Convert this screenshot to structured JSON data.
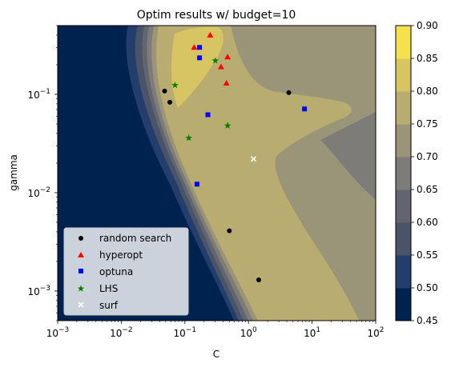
{
  "chart_data": {
    "type": "scatter",
    "title": "Optim results w/ budget=10",
    "xlabel": "C",
    "ylabel": "gamma",
    "xscale": "log",
    "yscale": "log",
    "xlim": [
      0.001,
      100
    ],
    "ylim": [
      0.0005,
      0.5
    ],
    "grid": false,
    "legend_position": "lower-left",
    "x_ticks": [
      {
        "value": 0.001,
        "base": "10",
        "exp": "−3"
      },
      {
        "value": 0.01,
        "base": "10",
        "exp": "−2"
      },
      {
        "value": 0.1,
        "base": "10",
        "exp": "−1"
      },
      {
        "value": 1,
        "base": "10",
        "exp": "0"
      },
      {
        "value": 10,
        "base": "10",
        "exp": "1"
      },
      {
        "value": 100,
        "base": "10",
        "exp": "2"
      }
    ],
    "y_ticks": [
      {
        "value": 0.001,
        "base": "10",
        "exp": "−3"
      },
      {
        "value": 0.01,
        "base": "10",
        "exp": "−2"
      },
      {
        "value": 0.1,
        "base": "10",
        "exp": "−1"
      }
    ],
    "colorbar": {
      "levels": [
        0.45,
        0.5,
        0.55,
        0.6,
        0.65,
        0.7,
        0.75,
        0.8,
        0.85,
        0.9
      ],
      "tick_labels": [
        "0.45",
        "0.50",
        "0.55",
        "0.60",
        "0.65",
        "0.70",
        "0.75",
        "0.80",
        "0.85",
        "0.90"
      ],
      "colors": [
        "#00224e",
        "#233e6c",
        "#4a5468",
        "#62656f",
        "#7d7c78",
        "#9a9578",
        "#b9ac70",
        "#d7c463",
        "#f6e14c"
      ]
    },
    "series": [
      {
        "name": "random search",
        "marker": "circle",
        "color": "#000000",
        "points": [
          [
            0.048,
            0.108
          ],
          [
            0.058,
            0.083
          ],
          [
            0.5,
            0.0041
          ],
          [
            1.45,
            0.0013
          ],
          [
            4.3,
            0.104
          ]
        ]
      },
      {
        "name": "hyperopt",
        "marker": "triangle",
        "color": "#ff0000",
        "points": [
          [
            0.14,
            0.3
          ],
          [
            0.25,
            0.4
          ],
          [
            0.37,
            0.19
          ],
          [
            0.47,
            0.24
          ],
          [
            0.45,
            0.13
          ]
        ]
      },
      {
        "name": "optuna",
        "marker": "square",
        "color": "#0000ff",
        "points": [
          [
            0.17,
            0.3
          ],
          [
            0.17,
            0.235
          ],
          [
            0.23,
            0.062
          ],
          [
            0.155,
            0.0122
          ],
          [
            7.6,
            0.071
          ]
        ]
      },
      {
        "name": "LHS",
        "marker": "star",
        "color": "#008000",
        "points": [
          [
            0.07,
            0.124
          ],
          [
            0.115,
            0.036
          ],
          [
            0.3,
            0.22
          ],
          [
            0.47,
            0.048
          ]
        ]
      },
      {
        "name": "surf",
        "marker": "x",
        "color": "#ffffff",
        "points": [
          [
            1.2,
            0.022
          ]
        ]
      }
    ]
  }
}
